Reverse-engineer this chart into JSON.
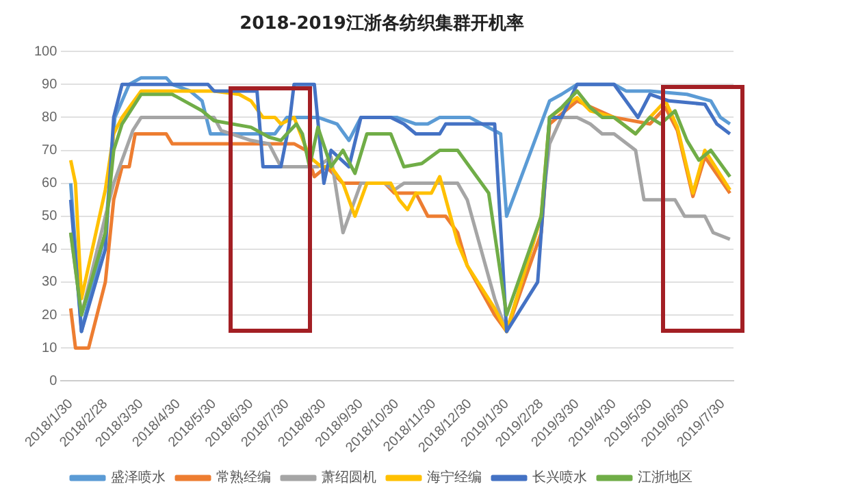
{
  "chart_data": {
    "type": "line",
    "title": "2018-2019江浙各纺织集群开机率",
    "xlim": [
      "2018-01-22",
      "2019-08-08"
    ],
    "xticks": [
      {
        "value": "2018-01-30",
        "label": "2018/1/30"
      },
      {
        "value": "2018-02-28",
        "label": "2018/2/28"
      },
      {
        "value": "2018-03-30",
        "label": "2018/3/30"
      },
      {
        "value": "2018-04-30",
        "label": "2018/4/30"
      },
      {
        "value": "2018-05-30",
        "label": "2018/5/30"
      },
      {
        "value": "2018-06-30",
        "label": "2018/6/30"
      },
      {
        "value": "2018-07-30",
        "label": "2018/7/30"
      },
      {
        "value": "2018-08-30",
        "label": "2018/8/30"
      },
      {
        "value": "2018-09-30",
        "label": "2018/9/30"
      },
      {
        "value": "2018-10-30",
        "label": "2018/10/30"
      },
      {
        "value": "2018-11-30",
        "label": "2018/11/30"
      },
      {
        "value": "2018-12-30",
        "label": "2018/12/30"
      },
      {
        "value": "2019-01-30",
        "label": "2019/1/30"
      },
      {
        "value": "2019-02-28",
        "label": "2019/2/28"
      },
      {
        "value": "2019-03-30",
        "label": "2019/3/30"
      },
      {
        "value": "2019-04-30",
        "label": "2019/4/30"
      },
      {
        "value": "2019-05-30",
        "label": "2019/5/30"
      },
      {
        "value": "2019-06-30",
        "label": "2019/6/30"
      },
      {
        "value": "2019-07-30",
        "label": "2019/7/30"
      }
    ],
    "ylim": [
      0,
      100
    ],
    "yticks": [
      0,
      10,
      20,
      30,
      40,
      50,
      60,
      70,
      80,
      90,
      100
    ],
    "grid": "y",
    "legend": "bottom",
    "series": [
      {
        "name": "盛泽喷水",
        "color": "#5b9bd5",
        "x": [
          "2018-01-30",
          "2018-02-08",
          "2018-02-28",
          "2018-03-08",
          "2018-03-20",
          "2018-03-30",
          "2018-04-20",
          "2018-04-25",
          "2018-05-10",
          "2018-05-20",
          "2018-05-27",
          "2018-07-05",
          "2018-07-20",
          "2018-07-30",
          "2018-08-25",
          "2018-09-10",
          "2018-09-20",
          "2018-09-30",
          "2018-10-30",
          "2018-11-15",
          "2018-11-25",
          "2018-12-05",
          "2018-12-30",
          "2019-01-25",
          "2019-01-30",
          "2019-03-07",
          "2019-03-17",
          "2019-03-30",
          "2019-04-30",
          "2019-05-10",
          "2019-05-30",
          "2019-06-30",
          "2019-07-20",
          "2019-07-28",
          "2019-08-05"
        ],
        "values": [
          60,
          15,
          45,
          80,
          90,
          92,
          92,
          90,
          88,
          85,
          75,
          75,
          75,
          80,
          80,
          78,
          73,
          80,
          80,
          78,
          78,
          80,
          80,
          75,
          50,
          85,
          87,
          90,
          90,
          88,
          88,
          87,
          85,
          80,
          78
        ]
      },
      {
        "name": "常熟经编",
        "color": "#ed7d31",
        "x": [
          "2018-01-30",
          "2018-02-03",
          "2018-02-14",
          "2018-02-28",
          "2018-03-07",
          "2018-03-14",
          "2018-03-20",
          "2018-03-25",
          "2018-04-20",
          "2018-04-25",
          "2018-08-05",
          "2018-08-15",
          "2018-08-22",
          "2018-09-01",
          "2018-09-15",
          "2018-10-20",
          "2018-10-28",
          "2018-11-15",
          "2018-11-25",
          "2018-12-10",
          "2018-12-20",
          "2018-12-28",
          "2019-01-20",
          "2019-01-30",
          "2019-02-28",
          "2019-03-07",
          "2019-03-30",
          "2019-04-30",
          "2019-05-30",
          "2019-06-12",
          "2019-06-22",
          "2019-07-05",
          "2019-07-15",
          "2019-08-05"
        ],
        "values": [
          22,
          10,
          10,
          30,
          55,
          65,
          65,
          75,
          75,
          72,
          72,
          70,
          62,
          65,
          60,
          60,
          57,
          57,
          50,
          50,
          45,
          35,
          20,
          15,
          45,
          78,
          85,
          80,
          78,
          83,
          76,
          56,
          68,
          57
        ]
      },
      {
        "name": "萧绍圆机",
        "color": "#a5a5a5",
        "x": [
          "2018-01-30",
          "2018-02-08",
          "2018-02-28",
          "2018-03-07",
          "2018-03-14",
          "2018-03-23",
          "2018-03-30",
          "2018-05-30",
          "2018-06-05",
          "2018-06-30",
          "2018-07-15",
          "2018-07-25",
          "2018-08-25",
          "2018-09-05",
          "2018-09-15",
          "2018-09-30",
          "2018-10-20",
          "2018-10-28",
          "2018-11-05",
          "2018-12-20",
          "2018-12-28",
          "2019-01-20",
          "2019-01-30",
          "2019-02-28",
          "2019-03-07",
          "2019-03-17",
          "2019-03-30",
          "2019-04-10",
          "2019-04-20",
          "2019-04-30",
          "2019-05-18",
          "2019-05-25",
          "2019-06-20",
          "2019-06-28",
          "2019-07-15",
          "2019-07-22",
          "2019-08-05"
        ],
        "values": [
          45,
          20,
          50,
          60,
          67,
          76,
          80,
          80,
          76,
          73,
          72,
          65,
          65,
          68,
          45,
          60,
          60,
          58,
          60,
          60,
          55,
          25,
          15,
          50,
          72,
          80,
          80,
          78,
          75,
          75,
          70,
          55,
          55,
          50,
          50,
          45,
          43
        ]
      },
      {
        "name": "海宁经编",
        "color": "#ffc000",
        "x": [
          "2018-01-30",
          "2018-02-03",
          "2018-02-08",
          "2018-02-28",
          "2018-03-07",
          "2018-03-14",
          "2018-03-30",
          "2018-05-30",
          "2018-06-20",
          "2018-06-30",
          "2018-07-10",
          "2018-07-20",
          "2018-07-25",
          "2018-08-05",
          "2018-08-18",
          "2018-08-28",
          "2018-09-05",
          "2018-09-15",
          "2018-09-25",
          "2018-10-05",
          "2018-10-25",
          "2018-11-01",
          "2018-11-08",
          "2018-11-15",
          "2018-11-28",
          "2018-12-05",
          "2018-12-20",
          "2018-12-28",
          "2019-01-20",
          "2019-01-30",
          "2019-02-28",
          "2019-03-07",
          "2019-03-30",
          "2019-04-10",
          "2019-04-30",
          "2019-05-18",
          "2019-05-30",
          "2019-06-12",
          "2019-06-22",
          "2019-07-05",
          "2019-07-15",
          "2019-08-05"
        ],
        "values": [
          67,
          60,
          25,
          58,
          75,
          80,
          88,
          88,
          87,
          85,
          80,
          80,
          78,
          80,
          68,
          65,
          65,
          60,
          50,
          60,
          60,
          55,
          52,
          57,
          57,
          62,
          42,
          35,
          22,
          15,
          50,
          80,
          86,
          82,
          80,
          75,
          80,
          85,
          77,
          57,
          70,
          58
        ]
      },
      {
        "name": "长兴喷水",
        "color": "#4472c4",
        "x": [
          "2018-01-30",
          "2018-02-08",
          "2018-02-28",
          "2018-03-07",
          "2018-03-14",
          "2018-05-25",
          "2018-05-30",
          "2018-07-05",
          "2018-07-10",
          "2018-07-25",
          "2018-08-01",
          "2018-08-05",
          "2018-08-22",
          "2018-08-30",
          "2018-09-05",
          "2018-09-20",
          "2018-09-30",
          "2018-10-25",
          "2018-11-05",
          "2018-11-15",
          "2018-12-05",
          "2018-12-10",
          "2019-01-20",
          "2019-01-30",
          "2019-02-25",
          "2019-03-07",
          "2019-03-17",
          "2019-03-30",
          "2019-04-30",
          "2019-05-20",
          "2019-05-30",
          "2019-06-15",
          "2019-07-15",
          "2019-07-25",
          "2019-08-05"
        ],
        "values": [
          55,
          15,
          40,
          80,
          90,
          90,
          88,
          88,
          65,
          65,
          78,
          90,
          90,
          60,
          70,
          65,
          80,
          80,
          78,
          75,
          75,
          78,
          78,
          15,
          30,
          80,
          80,
          90,
          90,
          80,
          87,
          85,
          84,
          78,
          75
        ]
      },
      {
        "name": "江浙地区",
        "color": "#70ad47",
        "x": [
          "2018-01-30",
          "2018-02-08",
          "2018-02-28",
          "2018-03-07",
          "2018-03-14",
          "2018-03-30",
          "2018-04-25",
          "2018-05-10",
          "2018-05-20",
          "2018-05-30",
          "2018-06-30",
          "2018-07-15",
          "2018-07-25",
          "2018-07-30",
          "2018-08-07",
          "2018-08-12",
          "2018-08-18",
          "2018-08-25",
          "2018-09-05",
          "2018-09-15",
          "2018-09-25",
          "2018-10-05",
          "2018-10-25",
          "2018-11-05",
          "2018-11-20",
          "2018-12-05",
          "2018-12-20",
          "2019-01-15",
          "2019-01-30",
          "2019-02-28",
          "2019-03-07",
          "2019-03-17",
          "2019-03-30",
          "2019-04-10",
          "2019-04-20",
          "2019-04-30",
          "2019-05-18",
          "2019-05-30",
          "2019-06-08",
          "2019-06-20",
          "2019-06-30",
          "2019-07-10",
          "2019-07-20",
          "2019-08-05"
        ],
        "values": [
          45,
          20,
          45,
          70,
          78,
          87,
          87,
          84,
          82,
          79,
          77,
          74,
          73,
          75,
          78,
          75,
          65,
          77,
          65,
          70,
          63,
          75,
          75,
          65,
          66,
          70,
          70,
          57,
          20,
          50,
          80,
          83,
          88,
          83,
          80,
          80,
          75,
          80,
          78,
          82,
          73,
          67,
          70,
          62
        ]
      }
    ]
  }
}
